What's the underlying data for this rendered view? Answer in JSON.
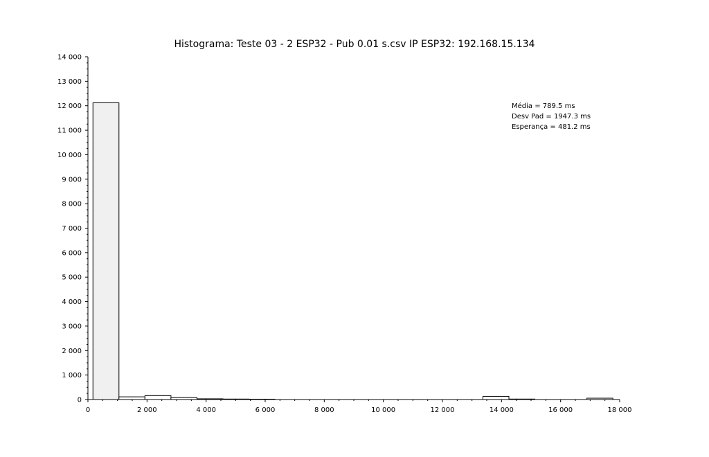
{
  "chart_data": {
    "type": "bar",
    "title": "Histograma: Teste 03 - 2 ESP32 - Pub 0.01 s.csv IP ESP32: 192.168.15.134",
    "xlabel": "",
    "ylabel": "",
    "xlim": [
      0,
      18000
    ],
    "ylim": [
      0,
      14000
    ],
    "x_ticks": [
      0,
      2000,
      4000,
      6000,
      8000,
      10000,
      12000,
      14000,
      16000,
      18000
    ],
    "x_tick_labels": [
      "0",
      "2 000",
      "4 000",
      "6 000",
      "8 000",
      "10 000",
      "12 000",
      "14 000",
      "16 000",
      "18 000"
    ],
    "y_ticks": [
      0,
      1000,
      2000,
      3000,
      4000,
      5000,
      6000,
      7000,
      8000,
      9000,
      10000,
      11000,
      12000,
      13000,
      14000
    ],
    "y_tick_labels": [
      "0",
      "1 000",
      "2 000",
      "3 000",
      "4 000",
      "5 000",
      "6 000",
      "7 000",
      "8 000",
      "9 000",
      "10 000",
      "11 000",
      "12 000",
      "13 000",
      "14 000"
    ],
    "bin_edges": [
      170,
      1050,
      1930,
      2810,
      3690,
      4570,
      5450,
      6330,
      7210,
      8090,
      8970,
      9850,
      10730,
      11610,
      12490,
      13370,
      14250,
      15130,
      16010,
      16890,
      17770
    ],
    "counts": [
      12120,
      110,
      160,
      80,
      30,
      20,
      15,
      0,
      0,
      0,
      0,
      0,
      0,
      0,
      0,
      130,
      20,
      0,
      0,
      55
    ],
    "grid": false,
    "legend": "none",
    "annotations": [
      "Média = 789.5 ms",
      "Desv Pad = 1947.3 ms",
      "Esperança = 481.2 ms"
    ],
    "colors": {
      "first_bar_fill": "#f0f0f0",
      "bar_fill": "#ffffff",
      "bar_stroke": "#000000"
    }
  }
}
